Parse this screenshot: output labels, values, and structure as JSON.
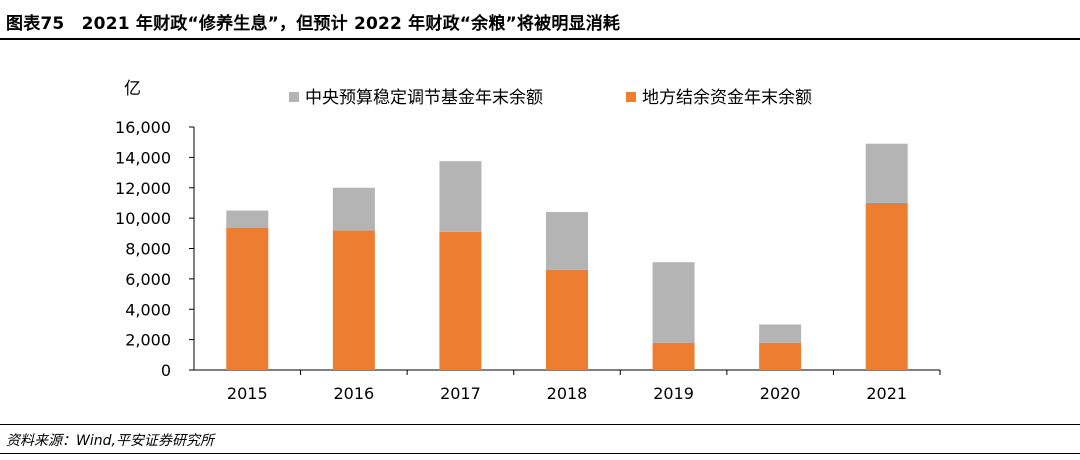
{
  "header": {
    "title": "图表75　2021 年财政“修养生息”，但预计 2022 年财政“余粮”将被明显消耗"
  },
  "footer": {
    "source": "资料来源：Wind,平安证券研究所"
  },
  "chart_data": {
    "type": "bar",
    "stacked": true,
    "unit_label": "亿",
    "categories": [
      "2015",
      "2016",
      "2017",
      "2018",
      "2019",
      "2020",
      "2021"
    ],
    "series": [
      {
        "name": "地方结余资金年末余额",
        "color": "#ED7D31",
        "values": [
          9350,
          9200,
          9100,
          6600,
          1800,
          1800,
          11000
        ]
      },
      {
        "name": "中央预算稳定调节基金年末余额",
        "color": "#B4B4B4",
        "values": [
          1150,
          2800,
          4650,
          3800,
          5300,
          1200,
          3900
        ]
      }
    ],
    "legend_order": [
      "中央预算稳定调节基金年末余额",
      "地方结余资金年末余额"
    ],
    "legend_position": "top",
    "ylim": [
      0,
      16000
    ],
    "yticks": [
      0,
      2000,
      4000,
      6000,
      8000,
      10000,
      12000,
      14000,
      16000
    ],
    "ytick_labels": [
      "0",
      "2,000",
      "4,000",
      "6,000",
      "8,000",
      "10,000",
      "12,000",
      "14,000",
      "16,000"
    ],
    "grid": false
  }
}
